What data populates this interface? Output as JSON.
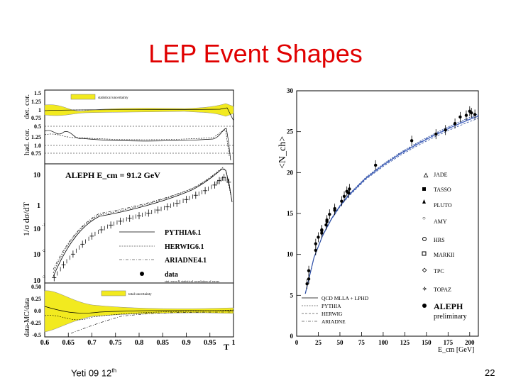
{
  "slide": {
    "title": "LEP Event Shapes",
    "footer_left": "Yeti 09 12",
    "footer_left_sup": "th",
    "page_number": "22"
  },
  "chart_data": [
    {
      "type": "line",
      "title": "ALEPH  E_cm = 91.2 GeV",
      "xlabel": "T",
      "ylabel": "1/σ dσ/dT",
      "xlim": [
        0.6,
        1.0
      ],
      "xticks": [
        "0.6",
        "0.65",
        "0.7",
        "0.75",
        "0.8",
        "0.85",
        "0.9",
        "0.95",
        "1"
      ],
      "main_yticks": [
        "10",
        "1",
        "10",
        "10",
        "10"
      ],
      "main_ytick_exponents": [
        "",
        "",
        "-1",
        "-2",
        "-3"
      ],
      "panels": [
        {
          "name": "det. cor.",
          "yticks": [
            "1.5",
            "1.25",
            "1",
            "0.75",
            "0.5"
          ],
          "legend": "statistical uncertainty"
        },
        {
          "name": "had. cor.",
          "yticks": [
            "1.25",
            "1.0",
            "0.75"
          ]
        },
        {
          "name": "data-MC/data",
          "yticks": [
            "0.50",
            "0.25",
            "0.0",
            "-0.25",
            "-0.5"
          ],
          "legend": "total uncertainty"
        }
      ],
      "legend": [
        "PYTHIA6.1",
        "HERWIG6.1",
        "ARIADNE4.1",
        "data"
      ],
      "legend_note": "stat. error & statistical correlation of errors",
      "series": [
        {
          "name": "data",
          "x": [
            0.62,
            0.64,
            0.66,
            0.68,
            0.7,
            0.72,
            0.74,
            0.76,
            0.78,
            0.8,
            0.82,
            0.84,
            0.86,
            0.88,
            0.9,
            0.92,
            0.94,
            0.96,
            0.97,
            0.98,
            0.99
          ],
          "y": [
            0.002,
            0.006,
            0.015,
            0.035,
            0.07,
            0.12,
            0.18,
            0.25,
            0.32,
            0.4,
            0.5,
            0.65,
            0.85,
            1.15,
            1.6,
            2.3,
            3.4,
            5.5,
            8.0,
            10.5,
            7.0
          ]
        }
      ]
    },
    {
      "type": "scatter",
      "ylabel": "<N_ch>",
      "xlabel": "E_cm [GeV]",
      "xlim": [
        0,
        210
      ],
      "ylim": [
        0,
        30
      ],
      "xticks": [
        "0",
        "25",
        "50",
        "75",
        "100",
        "125",
        "150",
        "175",
        "200"
      ],
      "yticks": [
        "0",
        "5",
        "10",
        "15",
        "20",
        "25",
        "30"
      ],
      "legend": [
        "JADE",
        "TASSO",
        "PLUTO",
        "AMY",
        "HRS",
        "MARKII",
        "TPC",
        "TOPAZ",
        "ALEPH"
      ],
      "legend_note": "preliminary",
      "curves": [
        "QCD MLLA + LPHD",
        "PYTHIA",
        "HERWIG",
        "ARIADNE"
      ],
      "series": [
        {
          "name": "data",
          "x": [
            12,
            14,
            14,
            22,
            22,
            25,
            29,
            29,
            29,
            34,
            35,
            35,
            38,
            44,
            44,
            52,
            55,
            58,
            60,
            61,
            91.2,
            133,
            161,
            172,
            183,
            189,
            196,
            200,
            202,
            206
          ],
          "y": [
            6.4,
            7.0,
            8.0,
            11.3,
            10.5,
            12.1,
            12.9,
            13.0,
            12.6,
            13.6,
            14.0,
            14.2,
            14.9,
            15.4,
            15.6,
            16.5,
            17.1,
            17.7,
            17.5,
            18.0,
            20.9,
            23.9,
            24.7,
            25.2,
            26.0,
            26.8,
            27.0,
            27.5,
            27.3,
            27.1
          ]
        },
        {
          "name": "QCD MLLA + LPHD",
          "x": [
            10,
            20,
            30,
            40,
            50,
            60,
            80,
            100,
            120,
            140,
            160,
            180,
            200,
            210
          ],
          "y": [
            5.2,
            9.6,
            12.3,
            14.3,
            15.9,
            17.2,
            19.3,
            20.9,
            22.3,
            23.5,
            24.6,
            25.6,
            26.5,
            26.9
          ]
        }
      ]
    }
  ]
}
